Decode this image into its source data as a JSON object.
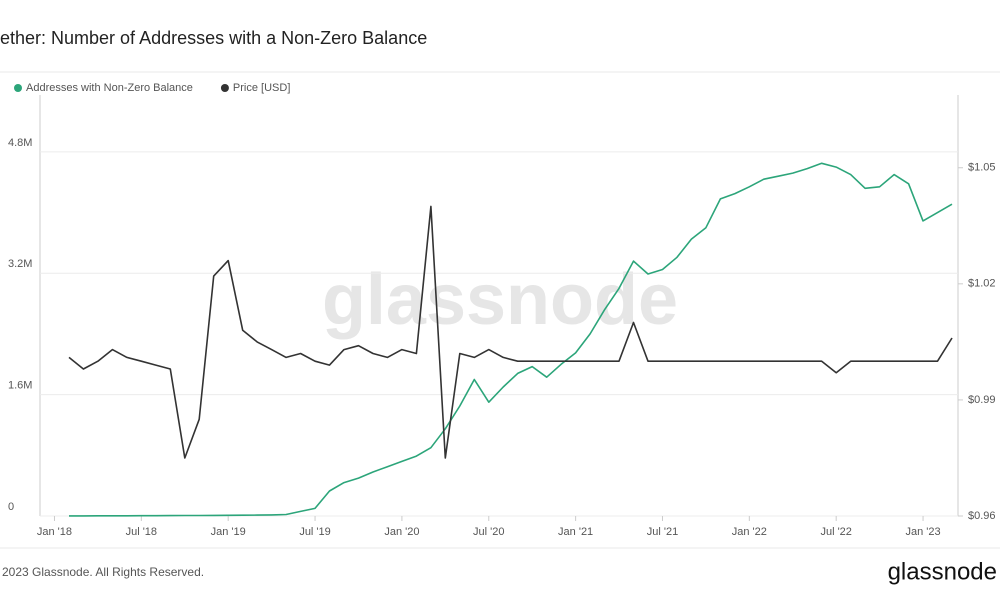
{
  "chart_data": {
    "type": "line",
    "title": "ether: Number of Addresses with a Non-Zero Balance",
    "watermark": "glassnode",
    "x": [
      "2018-02",
      "2018-03",
      "2018-04",
      "2018-05",
      "2018-06",
      "2018-07",
      "2018-08",
      "2018-09",
      "2018-10",
      "2018-11",
      "2018-12",
      "2019-01",
      "2019-02",
      "2019-03",
      "2019-04",
      "2019-05",
      "2019-06",
      "2019-07",
      "2019-08",
      "2019-09",
      "2019-10",
      "2019-11",
      "2019-12",
      "2020-01",
      "2020-02",
      "2020-03",
      "2020-04",
      "2020-05",
      "2020-06",
      "2020-07",
      "2020-08",
      "2020-09",
      "2020-10",
      "2020-11",
      "2020-12",
      "2021-01",
      "2021-02",
      "2021-03",
      "2021-04",
      "2021-05",
      "2021-06",
      "2021-07",
      "2021-08",
      "2021-09",
      "2021-10",
      "2021-11",
      "2021-12",
      "2022-01",
      "2022-02",
      "2022-03",
      "2022-04",
      "2022-05",
      "2022-06",
      "2022-07",
      "2022-08",
      "2022-09",
      "2022-10",
      "2022-11",
      "2022-12",
      "2023-01",
      "2023-02",
      "2023-03"
    ],
    "series": [
      {
        "name": "Addresses with Non-Zero Balance",
        "color": "#2ca57a",
        "values": [
          1000,
          1500,
          2000,
          2500,
          3000,
          3500,
          4000,
          5000,
          6000,
          7000,
          8000,
          9000,
          10000,
          12000,
          15000,
          20000,
          60000,
          100000,
          330000,
          440000,
          500000,
          580000,
          650000,
          720000,
          790000,
          900000,
          1150000,
          1450000,
          1800000,
          1500000,
          1700000,
          1880000,
          1970000,
          1830000,
          2000000,
          2150000,
          2400000,
          2720000,
          3000000,
          3360000,
          3190000,
          3250000,
          3410000,
          3650000,
          3800000,
          4180000,
          4250000,
          4340000,
          4440000,
          4480000,
          4520000,
          4580000,
          4650000,
          4600000,
          4500000,
          4320000,
          4340000,
          4500000,
          4380000,
          3890000,
          4000000,
          4110000
        ]
      },
      {
        "name": "Price [USD]",
        "color": "#333333",
        "axis": "y2",
        "values": [
          1.001,
          0.998,
          1.0,
          1.003,
          1.001,
          1.0,
          0.999,
          0.998,
          0.975,
          0.985,
          1.022,
          1.026,
          1.008,
          1.005,
          1.003,
          1.001,
          1.002,
          1.0,
          0.999,
          1.003,
          1.004,
          1.002,
          1.001,
          1.003,
          1.002,
          1.04,
          0.975,
          1.002,
          1.001,
          1.003,
          1.001,
          1.0,
          1.0,
          1.0,
          1.0,
          1.0,
          1.0,
          1.0,
          1.0,
          1.01,
          1.0,
          1.0,
          1.0,
          1.0,
          1.0,
          1.0,
          1.0,
          1.0,
          1.0,
          1.0,
          1.0,
          1.0,
          1.0,
          0.997,
          1.0,
          1.0,
          1.0,
          1.0,
          1.0,
          1.0,
          1.0,
          1.006
        ]
      }
    ],
    "xlim": [
      "2017-12",
      "2023-03"
    ],
    "xticks": [
      {
        "value": "2018-01",
        "label": "Jan '18"
      },
      {
        "value": "2018-07",
        "label": "Jul '18"
      },
      {
        "value": "2019-01",
        "label": "Jan '19"
      },
      {
        "value": "2019-07",
        "label": "Jul '19"
      },
      {
        "value": "2020-01",
        "label": "Jan '20"
      },
      {
        "value": "2020-07",
        "label": "Jul '20"
      },
      {
        "value": "2021-01",
        "label": "Jan '21"
      },
      {
        "value": "2021-07",
        "label": "Jul '21"
      },
      {
        "value": "2022-01",
        "label": "Jan '22"
      },
      {
        "value": "2022-07",
        "label": "Jul '22"
      },
      {
        "value": "2023-01",
        "label": "Jan '23"
      }
    ],
    "ylim": [
      0,
      5550000
    ],
    "yticks": [
      0,
      {
        "value": 1600000,
        "label": "1.6M"
      },
      {
        "value": 3200000,
        "label": "3.2M"
      },
      {
        "value": 4800000,
        "label": "4.8M"
      }
    ],
    "y2lim": [
      0.96,
      1.0688
    ],
    "y2ticks": [
      {
        "value": 0.96,
        "label": "$0.96"
      },
      {
        "value": 0.99,
        "label": "$0.99"
      },
      {
        "value": 1.02,
        "label": "$1.02"
      },
      {
        "value": 1.05,
        "label": "$1.05"
      }
    ],
    "grid": true,
    "legend": "top-left"
  },
  "footer": {
    "copyright": "2023 Glassnode. All Rights Reserved.",
    "logo": "glassnode"
  }
}
